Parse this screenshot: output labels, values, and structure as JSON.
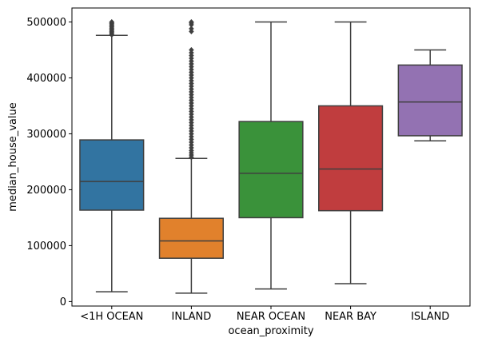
{
  "chart_data": {
    "type": "box",
    "title": "",
    "xlabel": "ocean_proximity",
    "ylabel": "median_house_value",
    "ylim": [
      -8000,
      525000
    ],
    "yticks": [
      0,
      100000,
      200000,
      300000,
      400000,
      500000
    ],
    "ytick_labels": [
      "0",
      "100000",
      "200000",
      "300000",
      "400000",
      "500000"
    ],
    "grid": false,
    "categories": [
      "<1H OCEAN",
      "INLAND",
      "NEAR OCEAN",
      "NEAR BAY",
      "ISLAND"
    ],
    "boxes": [
      {
        "category": "<1H OCEAN",
        "color": "#3274a1",
        "whisker_low": 17500,
        "q1": 163500,
        "median": 214800,
        "q3": 289100,
        "whisker_high": 476000,
        "outliers": [
          477000,
          479000,
          481000,
          483000,
          485000,
          487000,
          489000,
          491000,
          493000,
          495000,
          497000,
          499000,
          500001
        ]
      },
      {
        "category": "INLAND",
        "color": "#e1812c",
        "whisker_low": 15000,
        "q1": 77500,
        "median": 108500,
        "q3": 148900,
        "whisker_high": 256000,
        "outliers": [
          258000,
          262000,
          266000,
          270000,
          275000,
          280000,
          285000,
          290000,
          295000,
          300000,
          305000,
          310000,
          315000,
          320000,
          325000,
          330000,
          335000,
          340000,
          345000,
          350000,
          355000,
          360000,
          365000,
          370000,
          375000,
          380000,
          385000,
          390000,
          395000,
          400000,
          405000,
          410000,
          415000,
          420000,
          425000,
          430000,
          435000,
          440000,
          445000,
          450000,
          483000,
          488000,
          495000,
          498000,
          500001
        ]
      },
      {
        "category": "NEAR OCEAN",
        "color": "#3a923a",
        "whisker_low": 22500,
        "q1": 150000,
        "median": 229400,
        "q3": 322000,
        "whisker_high": 500001,
        "outliers": []
      },
      {
        "category": "NEAR BAY",
        "color": "#c03d3e",
        "whisker_low": 32000,
        "q1": 162500,
        "median": 237000,
        "q3": 350000,
        "whisker_high": 500001,
        "outliers": []
      },
      {
        "category": "ISLAND",
        "color": "#9372b2",
        "whisker_low": 287500,
        "q1": 296500,
        "median": 357000,
        "q3": 423000,
        "whisker_high": 450000,
        "outliers": []
      }
    ]
  }
}
